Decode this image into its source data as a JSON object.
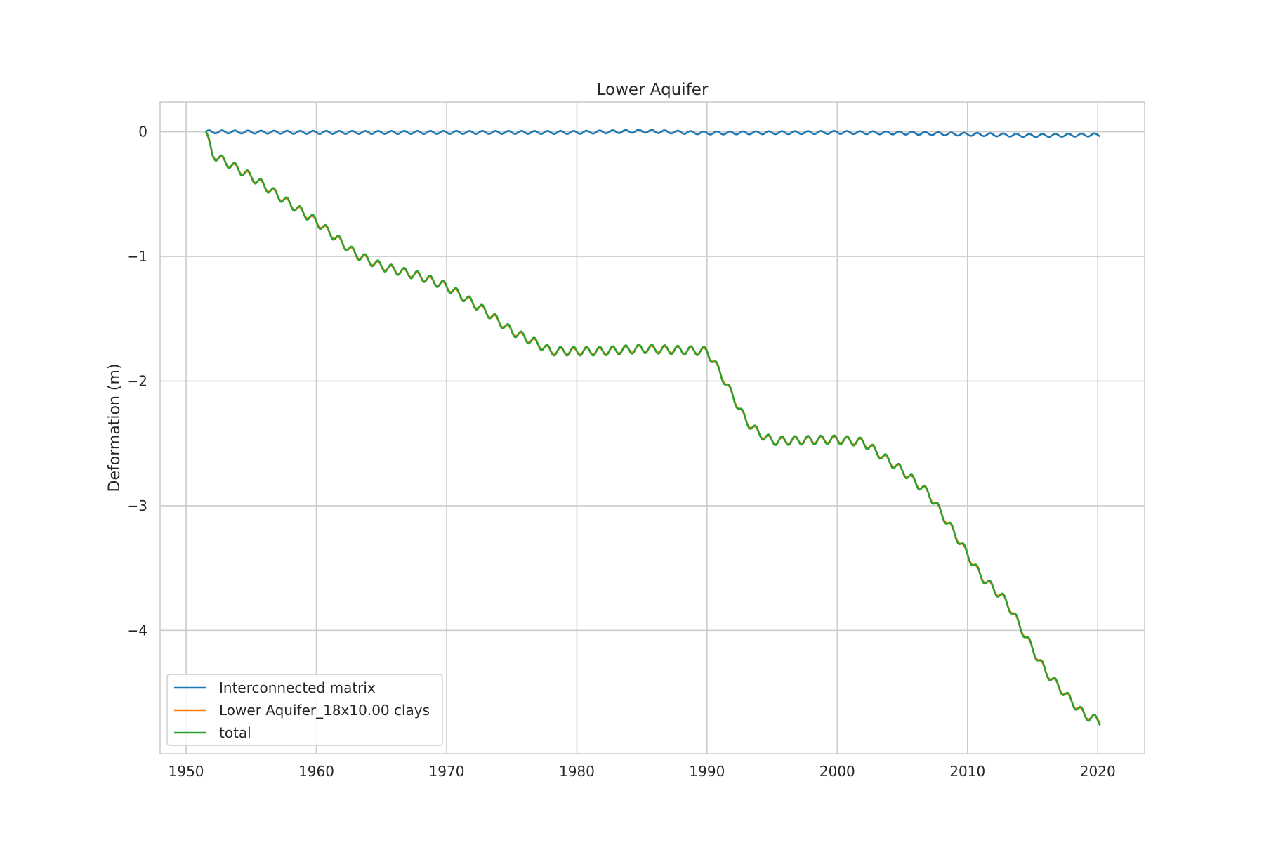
{
  "chart_data": {
    "type": "line",
    "title": "Lower Aquifer",
    "xlabel": "",
    "ylabel": "Deformation (m)",
    "xlim": [
      1948,
      2023.6
    ],
    "ylim": [
      -4.99,
      0.24
    ],
    "xticks": [
      1950,
      1960,
      1970,
      1980,
      1990,
      2000,
      2010,
      2020
    ],
    "xtick_labels": [
      "1950",
      "1960",
      "1970",
      "1980",
      "1990",
      "2000",
      "2010",
      "2020"
    ],
    "yticks": [
      0,
      -1,
      -2,
      -3,
      -4
    ],
    "ytick_labels": [
      "0",
      "−1",
      "−2",
      "−3",
      "−4"
    ],
    "grid": true,
    "legend_position": "lower-left",
    "series": [
      {
        "name": "Interconnected matrix",
        "color": "#1f77b4",
        "seasonal_amplitude": 0.012,
        "x": [
          1951.5,
          1960,
          1970,
          1980,
          1985,
          1990,
          2000,
          2005,
          2010,
          2015,
          2020.2
        ],
        "y": [
          0,
          -0.005,
          -0.005,
          -0.005,
          0.005,
          -0.01,
          -0.005,
          -0.01,
          -0.02,
          -0.03,
          -0.025
        ]
      },
      {
        "name": "Lower Aquifer_18x10.00 clays",
        "color": "#ff7f0e",
        "seasonal_amplitude": 0.025,
        "x": [
          1951.5,
          1952,
          1955,
          1958,
          1960,
          1963,
          1965,
          1968,
          1970,
          1973,
          1975,
          1977,
          1978,
          1982,
          1985,
          1990,
          1991,
          1993,
          1994,
          1995,
          2000,
          2002,
          2005,
          2007,
          2009,
          2011,
          2013,
          2015,
          2016,
          2018,
          2019,
          2020.2
        ],
        "y": [
          0,
          -0.18,
          -0.36,
          -0.58,
          -0.72,
          -0.98,
          -1.08,
          -1.16,
          -1.24,
          -1.44,
          -1.6,
          -1.7,
          -1.76,
          -1.76,
          -1.74,
          -1.76,
          -1.93,
          -2.32,
          -2.42,
          -2.48,
          -2.47,
          -2.49,
          -2.72,
          -2.9,
          -3.22,
          -3.56,
          -3.77,
          -4.15,
          -4.33,
          -4.57,
          -4.68,
          -4.72
        ]
      },
      {
        "name": "total",
        "color": "#2ca02c",
        "seasonal_amplitude": 0.035,
        "x": [
          1951.5,
          1952,
          1955,
          1958,
          1960,
          1963,
          1965,
          1968,
          1970,
          1973,
          1975,
          1977,
          1978,
          1982,
          1985,
          1990,
          1991,
          1993,
          1994,
          1995,
          2000,
          2002,
          2005,
          2007,
          2009,
          2011,
          2013,
          2015,
          2016,
          2018,
          2019,
          2020.2
        ],
        "y": [
          0,
          -0.18,
          -0.36,
          -0.58,
          -0.72,
          -0.98,
          -1.08,
          -1.16,
          -1.24,
          -1.44,
          -1.6,
          -1.7,
          -1.76,
          -1.76,
          -1.74,
          -1.76,
          -1.93,
          -2.32,
          -2.42,
          -2.48,
          -2.47,
          -2.49,
          -2.72,
          -2.9,
          -3.22,
          -3.56,
          -3.77,
          -4.15,
          -4.33,
          -4.57,
          -4.68,
          -4.73
        ]
      }
    ]
  }
}
